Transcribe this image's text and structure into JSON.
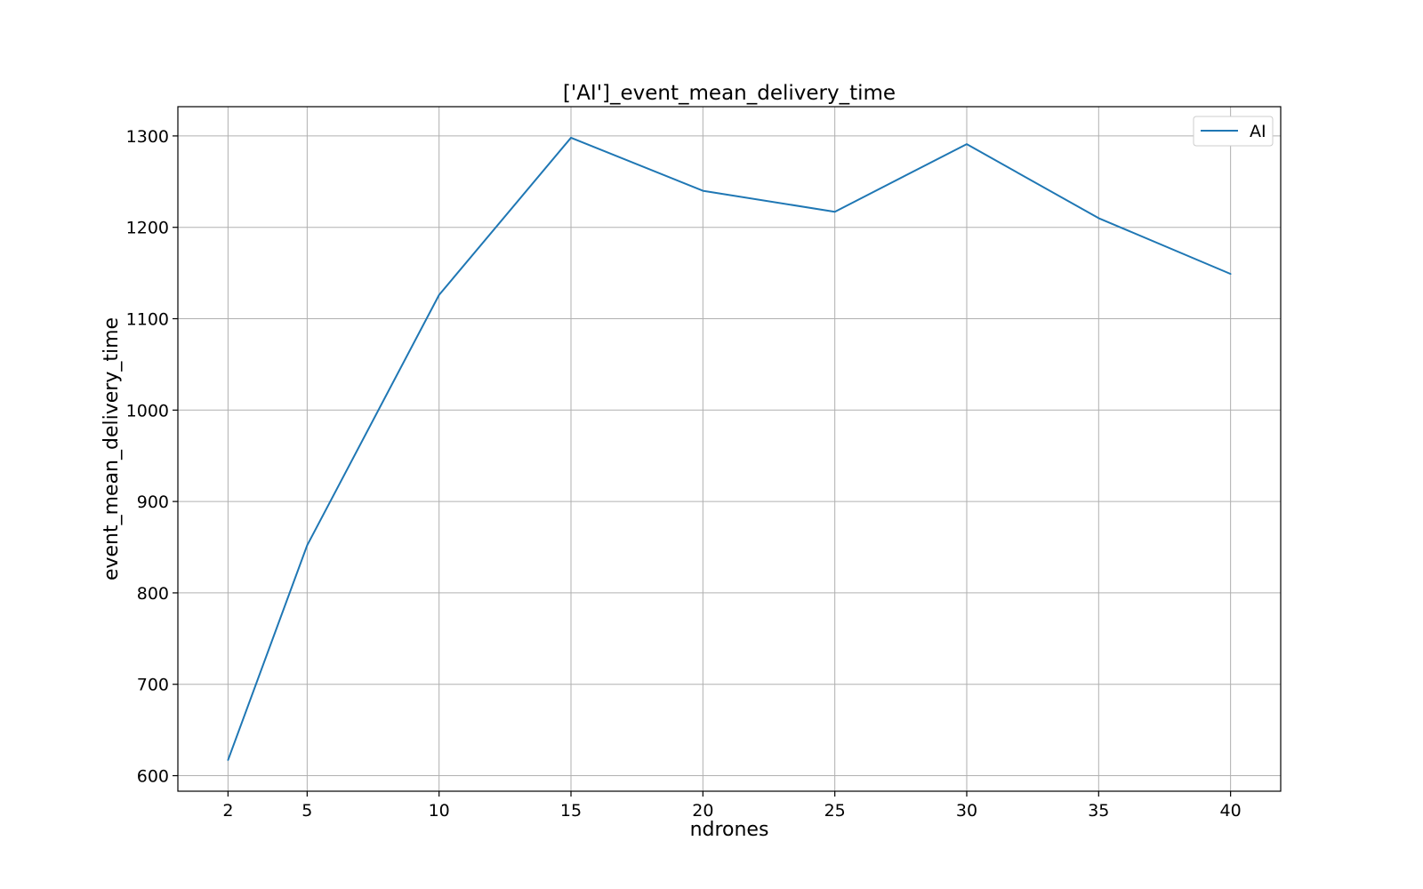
{
  "chart_data": {
    "type": "line",
    "title": "['AI']_event_mean_delivery_time",
    "xlabel": "ndrones",
    "ylabel": "event_mean_delivery_time",
    "x": [
      2,
      5,
      10,
      15,
      20,
      25,
      30,
      35,
      40
    ],
    "series": [
      {
        "name": "AI",
        "color": "#1f77b4",
        "values": [
          617,
          852,
          1126,
          1298,
          1240,
          1217,
          1291,
          1210,
          1149
        ]
      }
    ],
    "xticks": [
      2,
      5,
      10,
      15,
      20,
      25,
      30,
      35,
      40
    ],
    "yticks": [
      600,
      700,
      800,
      900,
      1000,
      1100,
      1200,
      1300
    ],
    "xlim": [
      0.1,
      41.9
    ],
    "ylim": [
      583,
      1332
    ],
    "grid": true,
    "legend_position": "top-right"
  }
}
